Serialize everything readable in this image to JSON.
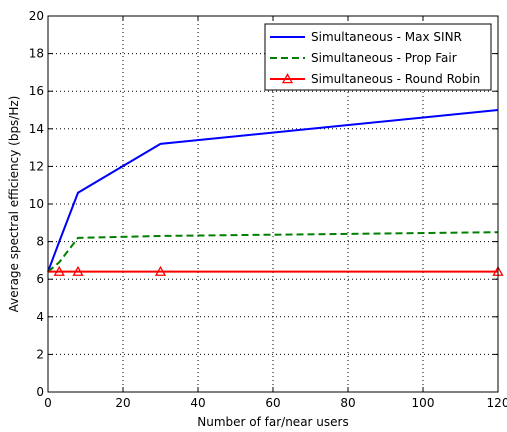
{
  "chart_data": {
    "type": "line",
    "title": "",
    "xlabel": "Number of far/near  users",
    "ylabel": "Average spectral efficiency (bps/Hz)",
    "xlim": [
      0,
      120
    ],
    "ylim": [
      0,
      20
    ],
    "xticks": [
      0,
      20,
      40,
      60,
      80,
      100,
      120
    ],
    "yticks": [
      0,
      2,
      4,
      6,
      8,
      10,
      12,
      14,
      16,
      18,
      20
    ],
    "xtick_labels": [
      "0",
      "20",
      "40",
      "60",
      "80",
      "100",
      "120"
    ],
    "ytick_labels": [
      "0",
      "2",
      "4",
      "6",
      "8",
      "10",
      "12",
      "14",
      "16",
      "18",
      "20"
    ],
    "grid": true,
    "legend_position": "top-right",
    "series": [
      {
        "name": "Simultaneous - Max SINR",
        "color": "#0000ff",
        "line_style": "solid",
        "marker": "none",
        "x": [
          0,
          3,
          8,
          30,
          120
        ],
        "y": [
          6.4,
          8.0,
          10.6,
          13.2,
          15.0
        ]
      },
      {
        "name": "Simultaneous - Prop Fair",
        "color": "#008000",
        "line_style": "dashed",
        "marker": "none",
        "x": [
          0,
          3,
          8,
          30,
          120
        ],
        "y": [
          6.4,
          6.9,
          8.2,
          8.3,
          8.5
        ]
      },
      {
        "name": "Simultaneous - Round Robin",
        "color": "#ff0000",
        "line_style": "solid",
        "marker": "triangle",
        "x": [
          0,
          3,
          8,
          30,
          120
        ],
        "y": [
          6.4,
          6.4,
          6.4,
          6.4,
          6.4
        ],
        "marker_x": [
          3,
          8,
          30,
          120
        ]
      }
    ]
  }
}
